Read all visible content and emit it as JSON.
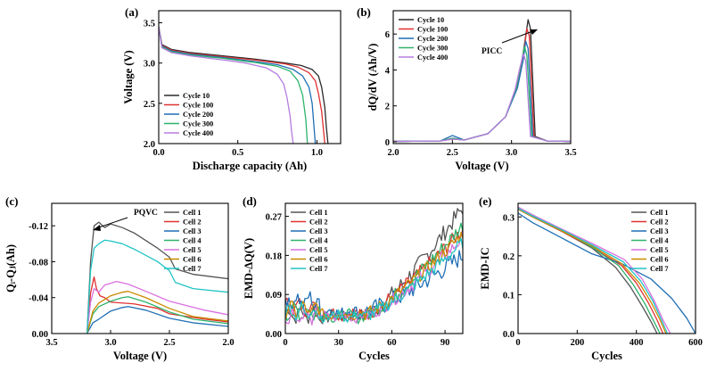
{
  "chart_data": [
    {
      "panel": "(a)",
      "type": "line",
      "xlabel": "Discharge capacity (Ah)",
      "ylabel": "Voltage (V)",
      "xlim": [
        0,
        1.15
      ],
      "ylim": [
        2.0,
        3.65
      ],
      "xticks": [
        "0.0",
        "0.5",
        "1.0"
      ],
      "yticks": [
        "2.0",
        "2.5",
        "3.0",
        "3.5"
      ],
      "legend_position": "lower-left",
      "series": [
        {
          "name": "Cycle 10",
          "color": "#2b2b2b",
          "x": [
            0,
            0.02,
            0.08,
            0.2,
            0.4,
            0.6,
            0.8,
            0.9,
            0.97,
            1.01,
            1.03,
            1.05,
            1.06,
            1.07
          ],
          "y": [
            3.45,
            3.23,
            3.17,
            3.13,
            3.09,
            3.05,
            3.0,
            2.97,
            2.92,
            2.84,
            2.7,
            2.45,
            2.2,
            2.0
          ]
        },
        {
          "name": "Cycle 100",
          "color": "#e03131",
          "x": [
            0,
            0.02,
            0.08,
            0.2,
            0.4,
            0.6,
            0.8,
            0.88,
            0.95,
            0.99,
            1.01,
            1.03,
            1.04,
            1.05
          ],
          "y": [
            3.45,
            3.22,
            3.16,
            3.12,
            3.08,
            3.04,
            2.99,
            2.95,
            2.88,
            2.78,
            2.62,
            2.4,
            2.2,
            2.0
          ]
        },
        {
          "name": "Cycle 200",
          "color": "#1f6fb5",
          "x": [
            0,
            0.02,
            0.08,
            0.2,
            0.4,
            0.6,
            0.75,
            0.85,
            0.91,
            0.95,
            0.97,
            0.98,
            0.99
          ],
          "y": [
            3.45,
            3.21,
            3.15,
            3.11,
            3.07,
            3.02,
            2.98,
            2.92,
            2.84,
            2.7,
            2.5,
            2.25,
            2.0
          ]
        },
        {
          "name": "Cycle 300",
          "color": "#2db36b",
          "x": [
            0,
            0.02,
            0.08,
            0.2,
            0.4,
            0.6,
            0.75,
            0.83,
            0.88,
            0.91,
            0.93,
            0.94
          ],
          "y": [
            3.45,
            3.2,
            3.14,
            3.1,
            3.06,
            3.01,
            2.96,
            2.9,
            2.78,
            2.6,
            2.3,
            2.0
          ]
        },
        {
          "name": "Cycle 400",
          "color": "#b57be0",
          "x": [
            0,
            0.02,
            0.08,
            0.2,
            0.4,
            0.55,
            0.68,
            0.75,
            0.79,
            0.81,
            0.83,
            0.84,
            0.85
          ],
          "y": [
            3.45,
            3.19,
            3.13,
            3.09,
            3.04,
            3.0,
            2.94,
            2.86,
            2.74,
            2.58,
            2.35,
            2.15,
            2.0
          ]
        }
      ]
    },
    {
      "panel": "(b)",
      "type": "line",
      "xlabel": "Voltage (V)",
      "ylabel": "dQ/dV (Ah/V)",
      "xlim": [
        2.0,
        3.5
      ],
      "ylim": [
        -0.1,
        7.3
      ],
      "xticks": [
        "2.0",
        "2.5",
        "3.0",
        "3.5"
      ],
      "yticks": [
        "0",
        "2",
        "4",
        "6"
      ],
      "annotation": "PICC",
      "legend_position": "top-left",
      "series": [
        {
          "name": "Cycle 10",
          "color": "#2b2b2b",
          "x": [
            2.0,
            2.4,
            2.5,
            2.6,
            2.8,
            2.95,
            3.05,
            3.1,
            3.14,
            3.16,
            3.2,
            3.3,
            3.5
          ],
          "y": [
            0.02,
            0.05,
            0.15,
            0.1,
            0.45,
            1.4,
            3.2,
            5.0,
            6.8,
            6.3,
            0.3,
            0.05,
            0.02
          ]
        },
        {
          "name": "Cycle 100",
          "color": "#e03131",
          "x": [
            2.0,
            2.4,
            2.5,
            2.6,
            2.8,
            2.95,
            3.05,
            3.1,
            3.13,
            3.15,
            3.19,
            3.3,
            3.5
          ],
          "y": [
            0.02,
            0.05,
            0.2,
            0.1,
            0.45,
            1.4,
            3.1,
            4.8,
            6.3,
            5.9,
            0.3,
            0.05,
            0.02
          ]
        },
        {
          "name": "Cycle 200",
          "color": "#1f6fb5",
          "x": [
            2.0,
            2.4,
            2.5,
            2.6,
            2.8,
            2.95,
            3.05,
            3.1,
            3.12,
            3.14,
            3.18,
            3.3,
            3.5
          ],
          "y": [
            0.02,
            0.05,
            0.35,
            0.1,
            0.45,
            1.4,
            3.0,
            4.6,
            5.6,
            5.2,
            0.3,
            0.05,
            0.02
          ]
        },
        {
          "name": "Cycle 300",
          "color": "#2db36b",
          "x": [
            2.0,
            2.4,
            2.5,
            2.6,
            2.8,
            2.95,
            3.04,
            3.08,
            3.11,
            3.13,
            3.17,
            3.3,
            3.5
          ],
          "y": [
            0.02,
            0.05,
            0.2,
            0.1,
            0.45,
            1.4,
            3.0,
            4.3,
            5.3,
            4.8,
            0.3,
            0.05,
            0.02
          ]
        },
        {
          "name": "Cycle 400",
          "color": "#b57be0",
          "x": [
            2.0,
            2.4,
            2.5,
            2.6,
            2.8,
            2.95,
            3.03,
            3.07,
            3.1,
            3.12,
            3.16,
            3.3,
            3.5
          ],
          "y": [
            0.02,
            0.05,
            0.15,
            0.1,
            0.45,
            1.4,
            2.9,
            4.1,
            4.9,
            4.5,
            0.3,
            0.05,
            0.02
          ]
        }
      ]
    },
    {
      "panel": "(c)",
      "type": "line",
      "xlabel": "Voltage (V)",
      "ylabel": "Qᵢ-Qⱼ(Ah)",
      "xlim": [
        3.5,
        2.0
      ],
      "ylim": [
        0.0,
        0.145
      ],
      "xticks": [
        "3.5",
        "3.0",
        "2.5",
        "2.0"
      ],
      "yticks": [
        "0.00",
        "-0.04",
        "-0.08",
        "-0.12"
      ],
      "annotation": "PQVC",
      "legend_position": "top-right",
      "series": [
        {
          "name": "Cell 1",
          "color": "#555555",
          "x": [
            3.2,
            3.17,
            3.14,
            3.1,
            3.05,
            3.0,
            2.9,
            2.8,
            2.6,
            2.5,
            2.45,
            2.3,
            2.0
          ],
          "y": [
            0.0,
            0.08,
            0.12,
            0.124,
            0.118,
            0.122,
            0.118,
            0.112,
            0.095,
            0.085,
            0.072,
            0.066,
            0.061
          ]
        },
        {
          "name": "Cell 2",
          "color": "#e03131",
          "x": [
            3.2,
            3.17,
            3.14,
            3.12,
            3.09,
            3.05,
            3.0,
            2.8,
            2.6,
            2.5,
            2.2,
            2.0
          ],
          "y": [
            0.0,
            0.045,
            0.063,
            0.05,
            0.042,
            0.04,
            0.035,
            0.033,
            0.028,
            0.022,
            0.016,
            0.013
          ]
        },
        {
          "name": "Cell 3",
          "color": "#1f6fb5",
          "x": [
            3.2,
            3.15,
            3.1,
            3.0,
            2.9,
            2.85,
            2.7,
            2.5,
            2.3,
            2.0
          ],
          "y": [
            0.0,
            0.012,
            0.016,
            0.025,
            0.029,
            0.03,
            0.026,
            0.017,
            0.012,
            0.008
          ]
        },
        {
          "name": "Cell 4",
          "color": "#2db36b",
          "x": [
            3.2,
            3.15,
            3.1,
            3.0,
            2.9,
            2.85,
            2.7,
            2.5,
            2.3,
            2.0
          ],
          "y": [
            0.0,
            0.022,
            0.03,
            0.036,
            0.04,
            0.041,
            0.035,
            0.024,
            0.016,
            0.011
          ]
        },
        {
          "name": "Cell 5",
          "color": "#d970e0",
          "x": [
            3.2,
            3.17,
            3.14,
            3.1,
            3.05,
            2.95,
            2.85,
            2.7,
            2.5,
            2.2,
            2.0
          ],
          "y": [
            0.0,
            0.035,
            0.05,
            0.046,
            0.054,
            0.058,
            0.055,
            0.047,
            0.036,
            0.026,
            0.021
          ]
        },
        {
          "name": "Cell 6",
          "color": "#c98a00",
          "x": [
            3.2,
            3.15,
            3.1,
            3.0,
            2.9,
            2.85,
            2.7,
            2.5,
            2.3,
            2.0
          ],
          "y": [
            0.0,
            0.025,
            0.034,
            0.042,
            0.046,
            0.047,
            0.04,
            0.028,
            0.019,
            0.014
          ]
        },
        {
          "name": "Cell 7",
          "color": "#22c4c4",
          "x": [
            3.2,
            3.17,
            3.14,
            3.1,
            3.05,
            3.0,
            2.9,
            2.8,
            2.6,
            2.5,
            2.45,
            2.3,
            2.0
          ],
          "y": [
            0.0,
            0.07,
            0.095,
            0.1,
            0.104,
            0.103,
            0.1,
            0.094,
            0.08,
            0.07,
            0.057,
            0.05,
            0.046
          ]
        }
      ]
    },
    {
      "panel": "(d)",
      "type": "line",
      "xlabel": "Cycles",
      "ylabel": "EMD-ΔQ(V)",
      "xlim": [
        0,
        100
      ],
      "ylim": [
        0.0,
        0.3
      ],
      "xticks": [
        "0",
        "30",
        "60",
        "90"
      ],
      "yticks": [
        "0.00",
        "0.09",
        "0.18",
        "0.27"
      ],
      "legend_position": "top-left",
      "series": [
        {
          "name": "Cell 1",
          "color": "#555555",
          "start": 0.045,
          "mid": 0.04,
          "end": 0.29,
          "noise": 0.018
        },
        {
          "name": "Cell 2",
          "color": "#e03131",
          "start": 0.06,
          "mid": 0.045,
          "end": 0.24,
          "noise": 0.016
        },
        {
          "name": "Cell 3",
          "color": "#1f6fb5",
          "start": 0.075,
          "mid": 0.05,
          "end": 0.18,
          "noise": 0.02
        },
        {
          "name": "Cell 4",
          "color": "#2db36b",
          "start": 0.05,
          "mid": 0.04,
          "end": 0.25,
          "noise": 0.016
        },
        {
          "name": "Cell 5",
          "color": "#d970e0",
          "start": 0.04,
          "mid": 0.04,
          "end": 0.22,
          "noise": 0.014
        },
        {
          "name": "Cell 6",
          "color": "#c98a00",
          "start": 0.055,
          "mid": 0.045,
          "end": 0.23,
          "noise": 0.014
        },
        {
          "name": "Cell 7",
          "color": "#22c4c4",
          "start": 0.05,
          "mid": 0.04,
          "end": 0.21,
          "noise": 0.014
        }
      ]
    },
    {
      "panel": "(e)",
      "type": "line",
      "xlabel": "Cycles",
      "ylabel": "EMD-IC",
      "xlim": [
        0,
        600
      ],
      "ylim": [
        0.0,
        0.335
      ],
      "xticks": [
        "0",
        "200",
        "400",
        "600"
      ],
      "yticks": [
        "0.0",
        "0.1",
        "0.2",
        "0.3"
      ],
      "legend_position": "top-right",
      "series": [
        {
          "name": "Cell 1",
          "color": "#555555",
          "x": [
            0,
            50,
            150,
            250,
            330,
            380,
            420,
            450,
            470
          ],
          "y": [
            0.32,
            0.3,
            0.262,
            0.22,
            0.17,
            0.12,
            0.07,
            0.03,
            0.0
          ]
        },
        {
          "name": "Cell 2",
          "color": "#e03131",
          "x": [
            0,
            50,
            150,
            250,
            350,
            400,
            440,
            470,
            490
          ],
          "y": [
            0.32,
            0.3,
            0.262,
            0.222,
            0.175,
            0.13,
            0.08,
            0.035,
            0.0
          ]
        },
        {
          "name": "Cell 3",
          "color": "#1f6fb5",
          "x": [
            0,
            50,
            150,
            250,
            350,
            450,
            520,
            570,
            600
          ],
          "y": [
            0.31,
            0.285,
            0.245,
            0.205,
            0.18,
            0.14,
            0.09,
            0.04,
            0.0
          ]
        },
        {
          "name": "Cell 4",
          "color": "#2db36b",
          "x": [
            0,
            50,
            150,
            250,
            340,
            390,
            430,
            460,
            480
          ],
          "y": [
            0.325,
            0.305,
            0.265,
            0.222,
            0.175,
            0.125,
            0.075,
            0.03,
            0.0
          ]
        },
        {
          "name": "Cell 5",
          "color": "#d970e0",
          "x": [
            0,
            50,
            150,
            250,
            360,
            420,
            460,
            490,
            515
          ],
          "y": [
            0.325,
            0.305,
            0.268,
            0.232,
            0.19,
            0.14,
            0.085,
            0.035,
            0.0
          ]
        },
        {
          "name": "Cell 6",
          "color": "#c98a00",
          "x": [
            0,
            50,
            150,
            250,
            350,
            410,
            450,
            480,
            500
          ],
          "y": [
            0.32,
            0.3,
            0.263,
            0.225,
            0.18,
            0.13,
            0.08,
            0.035,
            0.0
          ]
        },
        {
          "name": "Cell 7",
          "color": "#22c4c4",
          "x": [
            0,
            50,
            150,
            250,
            355,
            415,
            455,
            485,
            505
          ],
          "y": [
            0.322,
            0.302,
            0.266,
            0.228,
            0.185,
            0.135,
            0.085,
            0.035,
            0.0
          ]
        }
      ]
    }
  ]
}
